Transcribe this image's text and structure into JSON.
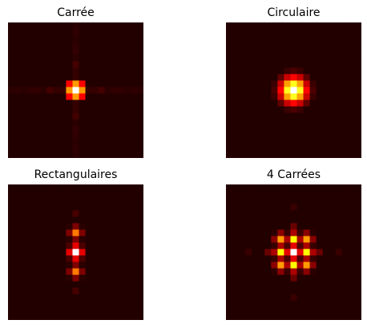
{
  "chart_data": [
    {
      "type": "heatmap",
      "title": "Carrée",
      "colormap": "hot",
      "axes_visible": false,
      "grid": 21,
      "background_level": 0.05,
      "peaks": [
        {
          "x": 0,
          "y": 0,
          "intensity": 1.0
        }
      ],
      "pattern": "sinc2d-square",
      "sidelobe_x": 0.12,
      "sidelobe_y": 0.12
    },
    {
      "type": "heatmap",
      "title": "Circulaire",
      "colormap": "hot",
      "axes_visible": false,
      "grid": 21,
      "background_level": 0.05,
      "peaks": [
        {
          "x": 0,
          "y": 0,
          "intensity": 1.0
        }
      ],
      "pattern": "airy",
      "sidelobe_x": 0.0,
      "sidelobe_y": 0.0
    },
    {
      "type": "heatmap",
      "title": "Rectangulaires",
      "colormap": "hot",
      "axes_visible": false,
      "grid": 21,
      "background_level": 0.05,
      "peaks": [
        {
          "x": 0,
          "y": 0,
          "intensity": 1.0
        },
        {
          "x": 0,
          "y": -3,
          "intensity": 0.55
        },
        {
          "x": 0,
          "y": 3,
          "intensity": 0.55
        },
        {
          "x": 0,
          "y": -6,
          "intensity": 0.1
        },
        {
          "x": 0,
          "y": 6,
          "intensity": 0.1
        }
      ],
      "pattern": "points",
      "sidelobe_x": 0.0,
      "sidelobe_y": 0.0
    },
    {
      "type": "heatmap",
      "title": "4 Carrées",
      "colormap": "hot",
      "axes_visible": false,
      "grid": 21,
      "background_level": 0.05,
      "peaks": [
        {
          "x": 0,
          "y": 0,
          "intensity": 1.0
        },
        {
          "x": -2,
          "y": 0,
          "intensity": 0.75
        },
        {
          "x": 2,
          "y": 0,
          "intensity": 0.75
        },
        {
          "x": 0,
          "y": -2,
          "intensity": 0.75
        },
        {
          "x": 0,
          "y": 2,
          "intensity": 0.75
        },
        {
          "x": -2,
          "y": -2,
          "intensity": 0.6
        },
        {
          "x": 2,
          "y": -2,
          "intensity": 0.6
        },
        {
          "x": -2,
          "y": 2,
          "intensity": 0.6
        },
        {
          "x": 2,
          "y": 2,
          "intensity": 0.6
        },
        {
          "x": -4,
          "y": 0,
          "intensity": 0.15
        },
        {
          "x": 4,
          "y": 0,
          "intensity": 0.15
        },
        {
          "x": 0,
          "y": -4,
          "intensity": 0.15
        },
        {
          "x": 0,
          "y": 4,
          "intensity": 0.15
        },
        {
          "x": 0,
          "y": -7,
          "intensity": 0.08
        },
        {
          "x": 0,
          "y": 7,
          "intensity": 0.08
        },
        {
          "x": -7,
          "y": 0,
          "intensity": 0.08
        },
        {
          "x": 7,
          "y": 0,
          "intensity": 0.08
        }
      ],
      "pattern": "points",
      "sidelobe_x": 0.0,
      "sidelobe_y": 0.0
    }
  ]
}
